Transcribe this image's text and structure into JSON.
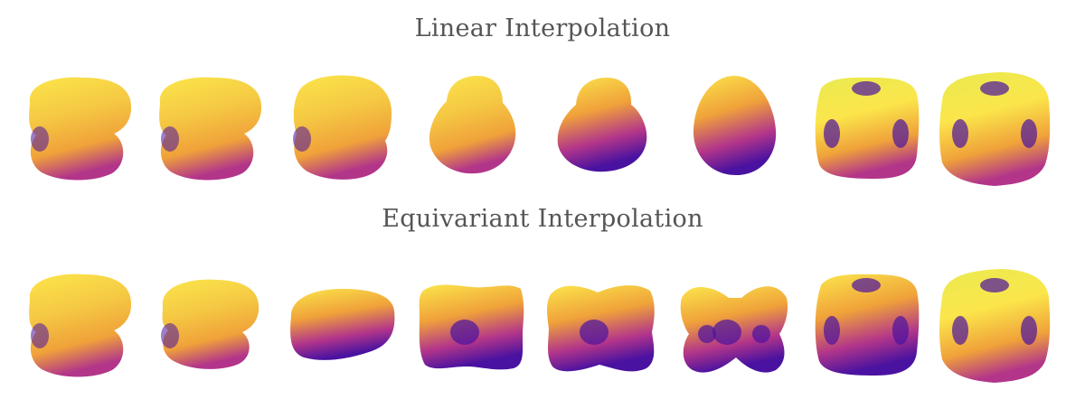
{
  "rows": [
    {
      "title": "Linear Interpolation",
      "shapes": [
        {
          "name": "linear-shape-1",
          "kind": "blob-bulge",
          "palette": "yellow-top"
        },
        {
          "name": "linear-shape-2",
          "kind": "blob-bulge",
          "palette": "yellow-top"
        },
        {
          "name": "linear-shape-3",
          "kind": "blob-round",
          "palette": "yellow-top"
        },
        {
          "name": "linear-shape-4",
          "kind": "dome-skirt",
          "palette": "yellow-top"
        },
        {
          "name": "linear-shape-5",
          "kind": "dome-skirt-dark",
          "palette": "purple-heavy"
        },
        {
          "name": "linear-shape-6",
          "kind": "egg",
          "palette": "orange"
        },
        {
          "name": "linear-shape-7",
          "kind": "rounded-cube-rot",
          "palette": "yellow-green"
        },
        {
          "name": "linear-shape-8",
          "kind": "rounded-cube",
          "palette": "yellow-green"
        }
      ]
    },
    {
      "title": "Equivariant Interpolation",
      "shapes": [
        {
          "name": "equivariant-shape-1",
          "kind": "blob-bulge",
          "palette": "yellow-top"
        },
        {
          "name": "equivariant-shape-2",
          "kind": "blob-bulge-flat",
          "palette": "yellow-top"
        },
        {
          "name": "equivariant-shape-3",
          "kind": "flat-tilted",
          "palette": "orange"
        },
        {
          "name": "equivariant-shape-4",
          "kind": "pillow",
          "palette": "orange"
        },
        {
          "name": "equivariant-shape-5",
          "kind": "pillow-notch",
          "palette": "orange"
        },
        {
          "name": "equivariant-shape-6",
          "kind": "butterfly",
          "palette": "orange"
        },
        {
          "name": "equivariant-shape-7",
          "kind": "rounded-cube-rot",
          "palette": "orange"
        },
        {
          "name": "equivariant-shape-8",
          "kind": "rounded-cube",
          "palette": "yellow-green"
        }
      ]
    }
  ],
  "colors": {
    "yellow": "#fbe64b",
    "orange": "#f0a23a",
    "magenta": "#b2358a",
    "purple": "#4a12a0",
    "title_gray": "#555555"
  }
}
